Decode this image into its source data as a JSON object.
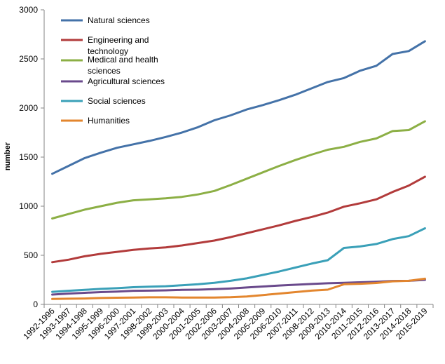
{
  "chart_data": {
    "type": "line",
    "title": "",
    "xlabel": "",
    "ylabel": "number",
    "ylim": [
      0,
      3000
    ],
    "yticks": [
      0,
      500,
      1000,
      1500,
      2000,
      2500,
      3000
    ],
    "grid": false,
    "legend_position": "top-left",
    "categories": [
      "1992-1996",
      "1993-1997",
      "1994-1998",
      "1995-1999",
      "1996-2000",
      "1997-2001",
      "1998-2002",
      "1999-2003",
      "2000-2004",
      "2001-2005",
      "2002-2006",
      "2003-2007",
      "2004-2008",
      "2005-2009",
      "2006-2010",
      "2007-2011",
      "2008-2012",
      "2009-2013",
      "2010-2014",
      "2011-2015",
      "2012-2016",
      "2013-2017",
      "2014-2018",
      "2015-2019"
    ],
    "series": [
      {
        "name": "Natural sciences",
        "color": "#4472a8",
        "values": [
          1330,
          1410,
          1490,
          1545,
          1595,
          1630,
          1665,
          1705,
          1750,
          1805,
          1875,
          1925,
          1985,
          2030,
          2080,
          2135,
          2200,
          2265,
          2305,
          2380,
          2430,
          2550,
          2580,
          2680
        ]
      },
      {
        "name": "Engineering and technology",
        "color": "#b23b3b",
        "values": [
          430,
          455,
          490,
          515,
          535,
          555,
          570,
          580,
          600,
          625,
          650,
          685,
          725,
          765,
          805,
          850,
          890,
          935,
          995,
          1030,
          1070,
          1145,
          1210,
          1300
        ]
      },
      {
        "name": "Medical and health sciences",
        "color": "#8caf45",
        "values": [
          875,
          920,
          965,
          1000,
          1035,
          1060,
          1070,
          1080,
          1095,
          1120,
          1155,
          1215,
          1280,
          1345,
          1410,
          1470,
          1525,
          1575,
          1605,
          1655,
          1690,
          1765,
          1775,
          1865
        ]
      },
      {
        "name": "Agricultural sciences",
        "color": "#6a4a8c",
        "values": [
          100,
          110,
          118,
          125,
          130,
          138,
          140,
          143,
          148,
          150,
          155,
          162,
          172,
          182,
          192,
          200,
          208,
          215,
          220,
          225,
          230,
          238,
          240,
          250
        ]
      },
      {
        "name": "Social sciences",
        "color": "#3aa0b8",
        "values": [
          128,
          138,
          148,
          158,
          165,
          175,
          180,
          185,
          195,
          205,
          220,
          240,
          265,
          300,
          335,
          375,
          415,
          450,
          575,
          590,
          615,
          665,
          695,
          775
        ]
      },
      {
        "name": "Humanities",
        "color": "#e3862e",
        "values": [
          55,
          58,
          60,
          65,
          68,
          70,
          72,
          72,
          70,
          70,
          70,
          73,
          80,
          95,
          110,
          125,
          140,
          150,
          205,
          210,
          218,
          235,
          240,
          262
        ]
      }
    ]
  }
}
